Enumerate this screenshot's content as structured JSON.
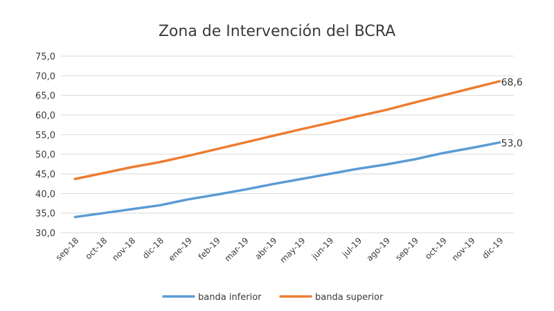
{
  "chart_data": {
    "type": "line",
    "title": "Zona de Intervención del BCRA",
    "categories": [
      "sep-18",
      "oct-18",
      "nov-18",
      "dic-18",
      "ene-19",
      "feb-19",
      "mar-19",
      "abr-19",
      "may-19",
      "jun-19",
      "jul-19",
      "ago-19",
      "sep-19",
      "oct-19",
      "nov-19",
      "dic-19"
    ],
    "y_ticks": [
      "30,0",
      "35,0",
      "40,0",
      "45,0",
      "50,0",
      "55,0",
      "60,0",
      "65,0",
      "70,0",
      "75,0"
    ],
    "ylim": [
      30,
      75
    ],
    "grid": true,
    "legend_position": "bottom",
    "series": [
      {
        "name": "banda inferior",
        "color": "#5b9bd5",
        "values": [
          34.0,
          35.0,
          36.0,
          37.0,
          38.5,
          39.7,
          41.0,
          42.4,
          43.7,
          45.0,
          46.3,
          47.4,
          48.7,
          50.3,
          51.6,
          53.0
        ],
        "end_label": "53,0"
      },
      {
        "name": "banda superior",
        "color": "#ed7d31",
        "values": [
          43.7,
          45.2,
          46.7,
          48.0,
          49.6,
          51.3,
          53.0,
          54.7,
          56.4,
          58.0,
          59.7,
          61.3,
          63.2,
          65.0,
          66.8,
          68.6
        ],
        "end_label": "68,6"
      }
    ]
  }
}
